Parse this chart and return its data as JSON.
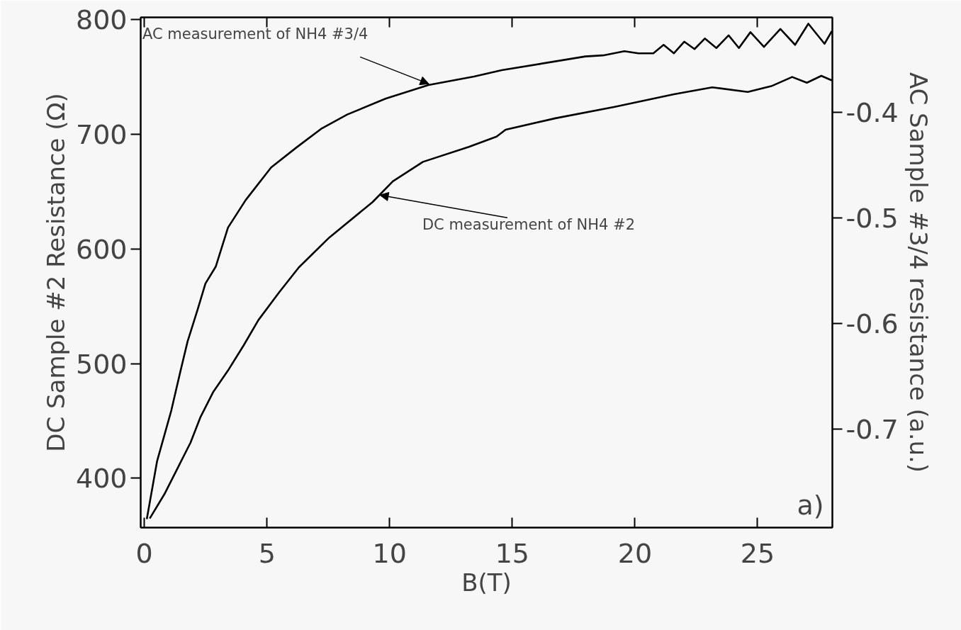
{
  "chart_data": {
    "type": "line",
    "xlabel": "B(T)",
    "ylabel": "DC Sample #2 Resistance (Ω)",
    "y2label": "AC Sample #3/4 resistance (a.u.)",
    "xlim": [
      -0.15,
      28.05
    ],
    "xticks": [
      0,
      5,
      10,
      15,
      20,
      25
    ],
    "ylim": [
      357,
      802
    ],
    "yticks": [
      400,
      500,
      600,
      700,
      800
    ],
    "y2lim": [
      -0.793,
      -0.31
    ],
    "y2ticks": [
      -0.4,
      -0.5,
      -0.6,
      -0.7
    ],
    "grid": false,
    "marker": "none",
    "line_style": "solid",
    "series": [
      {
        "color": "#000000",
        "axis": "y2",
        "x": [
          0.1,
          0.52,
          1.1,
          1.46,
          1.76,
          2.18,
          2.49,
          2.91,
          3.41,
          4.13,
          5.17,
          6.21,
          7.24,
          8.27,
          9.83,
          11.58,
          13.44,
          14.57,
          17.98,
          18.7,
          19.57,
          20.14,
          20.75,
          21.17,
          21.59,
          22.01,
          22.43,
          22.85,
          23.32,
          23.82,
          24.24,
          24.71,
          25.26,
          25.93,
          26.53,
          27.07,
          27.73,
          28.03
        ],
        "values": [
          -0.785,
          -0.73,
          -0.682,
          -0.646,
          -0.617,
          -0.586,
          -0.562,
          -0.546,
          -0.509,
          -0.483,
          -0.452,
          -0.433,
          -0.415,
          -0.402,
          -0.387,
          -0.374,
          -0.366,
          -0.36,
          -0.347,
          -0.346,
          -0.342,
          -0.344,
          -0.344,
          -0.336,
          -0.344,
          -0.333,
          -0.34,
          -0.33,
          -0.339,
          -0.327,
          -0.339,
          -0.324,
          -0.338,
          -0.321,
          -0.336,
          -0.316,
          -0.335,
          -0.323
        ]
      },
      {
        "color": "#000000",
        "x": [
          0.22,
          0.84,
          1.36,
          1.88,
          2.28,
          2.8,
          3.41,
          4.05,
          4.65,
          5.49,
          6.3,
          7.54,
          9.31,
          10.13,
          11.36,
          13.23,
          14.36,
          14.73,
          16.76,
          19.18,
          21.59,
          23.15,
          24.6,
          25.56,
          26.41,
          27.01,
          27.6,
          28.03
        ],
        "values": [
          365,
          387,
          409,
          431,
          453,
          475,
          494,
          516,
          538,
          562,
          584,
          610,
          641,
          659,
          676,
          689,
          698,
          704,
          714,
          724,
          735,
          741,
          737,
          742,
          750,
          745,
          751,
          747
        ]
      }
    ],
    "annotations": [
      {
        "text": "AC measurement of NH4 #3/4",
        "x": 11.6,
        "y": 744
      },
      {
        "text": "DC measurement of NH4 #2",
        "x": 9.6,
        "y": 647
      },
      "a)"
    ]
  }
}
